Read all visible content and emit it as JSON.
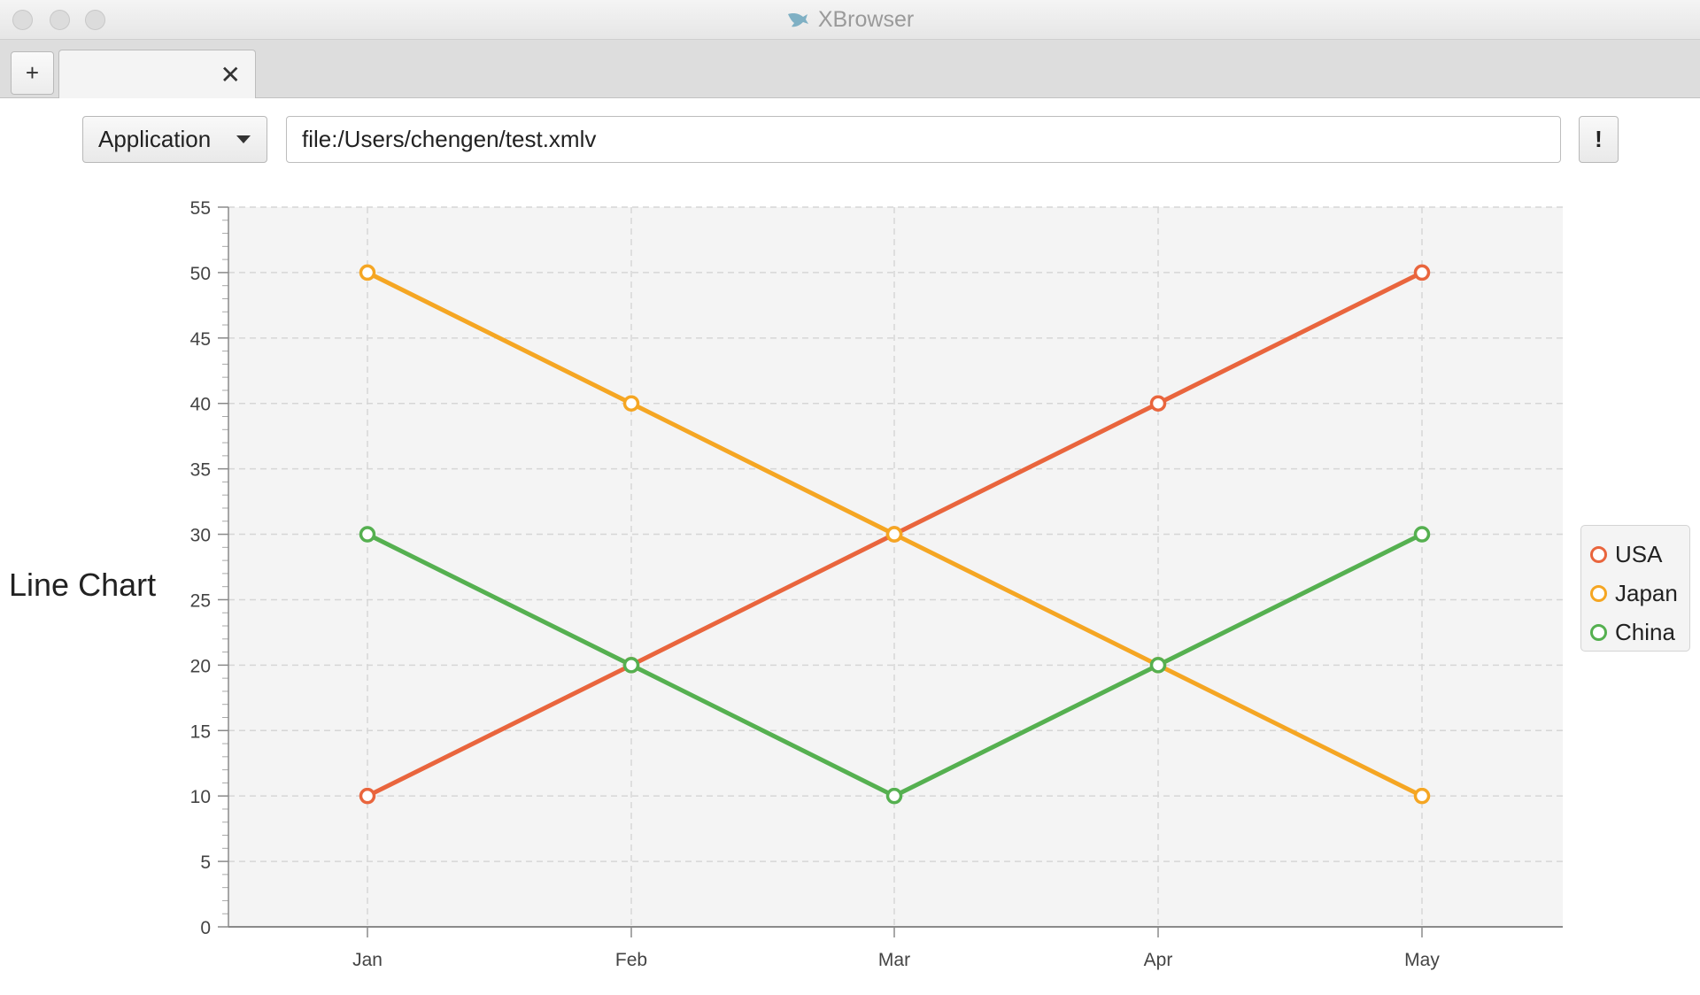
{
  "window": {
    "title": "XBrowser",
    "logo_icon": "shark-icon"
  },
  "tabbar": {
    "new_tab_label": "+",
    "tab_title": "",
    "close_label": "✕"
  },
  "toolbar": {
    "mode_label": "Application",
    "url_value": "file:/Users/chengen/test.xmlv",
    "go_label": "!"
  },
  "chart_data": {
    "type": "line",
    "title": "Line Chart",
    "xlabel": "",
    "ylabel": "",
    "categories": [
      "Jan",
      "Feb",
      "Mar",
      "Apr",
      "May"
    ],
    "ylim": [
      0,
      55
    ],
    "yticks": [
      0,
      5,
      10,
      15,
      20,
      25,
      30,
      35,
      40,
      45,
      50,
      55
    ],
    "grid": true,
    "legend": "right",
    "series": [
      {
        "name": "USA",
        "values": [
          10,
          20,
          30,
          40,
          50
        ],
        "color": "#e9653d"
      },
      {
        "name": "Japan",
        "values": [
          50,
          40,
          30,
          20,
          10
        ],
        "color": "#f5a623"
      },
      {
        "name": "China",
        "values": [
          30,
          20,
          10,
          20,
          30
        ],
        "color": "#55b050"
      }
    ]
  }
}
